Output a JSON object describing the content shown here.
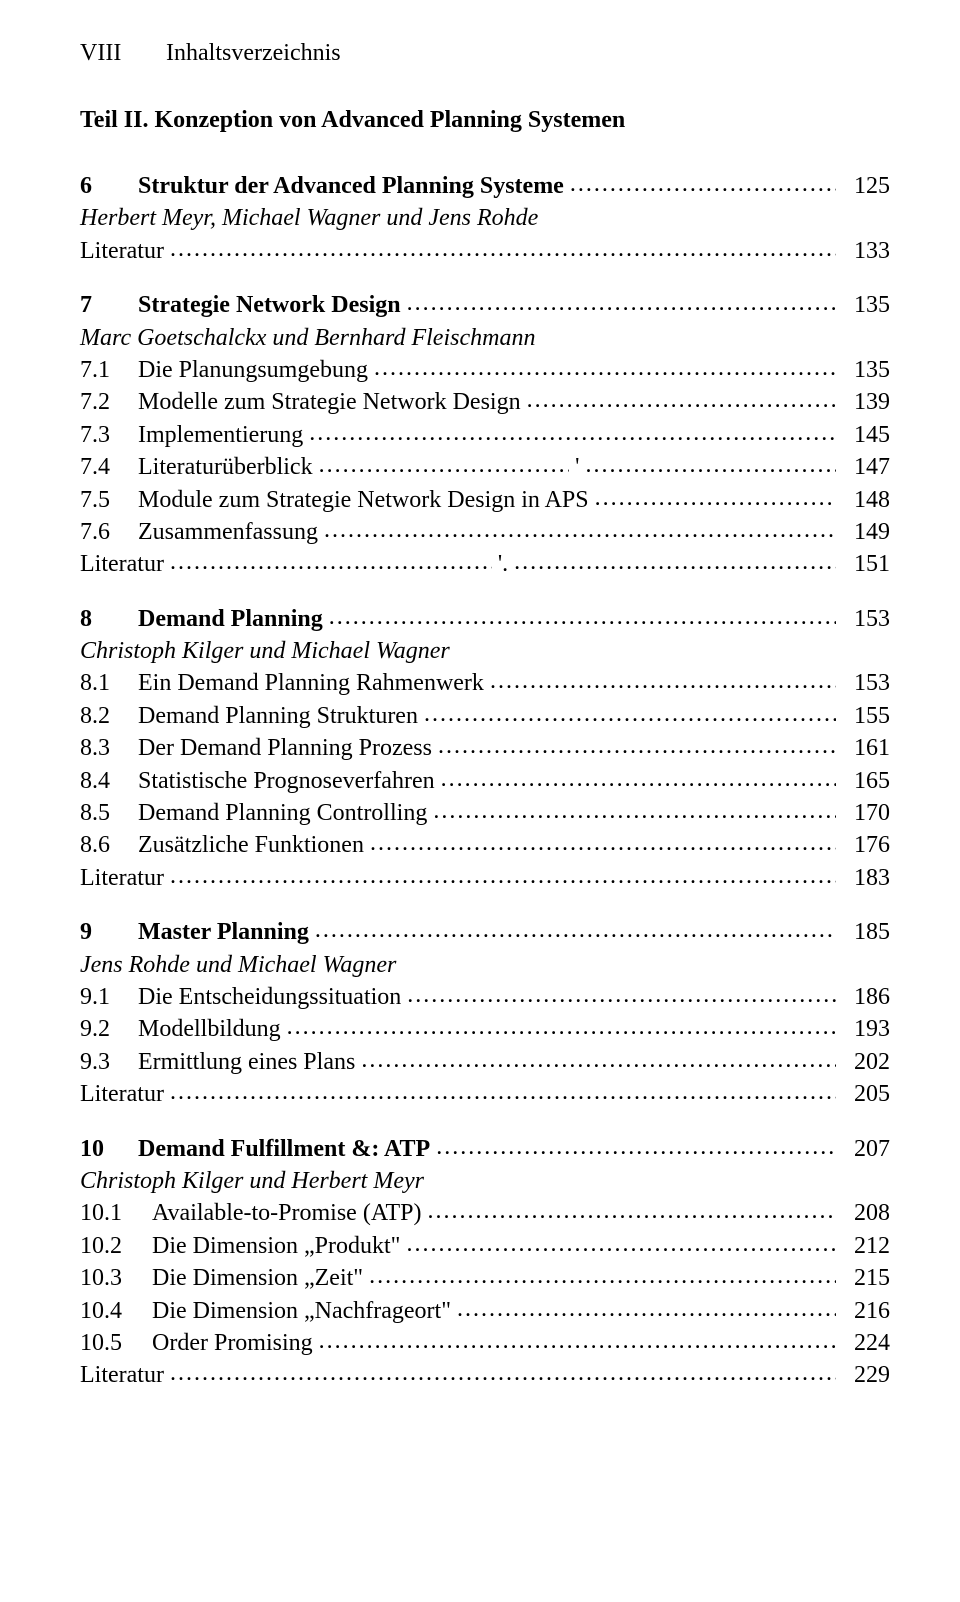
{
  "header": {
    "page_roman": "VIII",
    "title": "Inhaltsverzeichnis"
  },
  "part": {
    "title": "Teil II. Konzeption von Advanced Planning Systemen"
  },
  "ch6": {
    "num": "6",
    "title": "Struktur der Advanced Planning Systeme",
    "page": "125",
    "authors": "Herbert Meyr, Michael Wagner und Jens Rohde",
    "lit": {
      "label": "Literatur",
      "page": "133"
    }
  },
  "ch7": {
    "num": "7",
    "title": "Strategie Network Design",
    "page": "135",
    "authors": "Marc Goetschalckx und Bernhard Fleischmann",
    "s1": {
      "num": "7.1",
      "label": "Die Planungsumgebung",
      "page": "135"
    },
    "s2": {
      "num": "7.2",
      "label": "Modelle zum Strategie Network Design",
      "page": "139"
    },
    "s3": {
      "num": "7.3",
      "label": "Implementierung",
      "page": "145"
    },
    "s4": {
      "num": "7.4",
      "label": "Literaturüberblick",
      "mark": "'",
      "page": "147"
    },
    "s5": {
      "num": "7.5",
      "label": "Module zum Strategie Network Design in APS",
      "page": "148"
    },
    "s6": {
      "num": "7.6",
      "label": "Zusammenfassung",
      "page": "149"
    },
    "lit": {
      "label": "Literatur",
      "mark": "'.",
      "page": "151"
    }
  },
  "ch8": {
    "num": "8",
    "title": "Demand Planning",
    "page": "153",
    "authors": "Christoph Kilger und Michael Wagner",
    "s1": {
      "num": "8.1",
      "label": "Ein Demand Planning Rahmenwerk",
      "page": "153"
    },
    "s2": {
      "num": "8.2",
      "label": "Demand Planning Strukturen",
      "page": "155"
    },
    "s3": {
      "num": "8.3",
      "label": "Der Demand Planning Prozess",
      "page": "161"
    },
    "s4": {
      "num": "8.4",
      "label": "Statistische Prognoseverfahren",
      "page": "165"
    },
    "s5": {
      "num": "8.5",
      "label": "Demand Planning Controlling",
      "page": "170"
    },
    "s6": {
      "num": "8.6",
      "label": "Zusätzliche Funktionen",
      "page": "176"
    },
    "lit": {
      "label": "Literatur",
      "page": "183"
    }
  },
  "ch9": {
    "num": "9",
    "title": "Master Planning",
    "page": "185",
    "authors": "Jens Rohde und Michael Wagner",
    "s1": {
      "num": "9.1",
      "label": "Die Entscheidungssituation",
      "page": "186"
    },
    "s2": {
      "num": "9.2",
      "label": "Modellbildung",
      "page": "193"
    },
    "s3": {
      "num": "9.3",
      "label": "Ermittlung eines Plans",
      "page": "202"
    },
    "lit": {
      "label": "Literatur",
      "page": "205"
    }
  },
  "ch10": {
    "num": "10",
    "title": "Demand Fulfillment &: ATP",
    "page": "207",
    "authors": "Christoph Kilger und Herbert Meyr",
    "s1": {
      "num": "10.1",
      "label": "Available-to-Promise (ATP)",
      "page": "208"
    },
    "s2": {
      "num": "10.2",
      "label": "Die Dimension „Produkt\"",
      "page": "212"
    },
    "s3": {
      "num": "10.3",
      "label": "Die Dimension „Zeit\"",
      "page": "215"
    },
    "s4": {
      "num": "10.4",
      "label": "Die Dimension „Nachfrageort\"",
      "page": "216"
    },
    "s5": {
      "num": "10.5",
      "label": "Order Promising",
      "page": "224"
    },
    "lit": {
      "label": "Literatur",
      "page": "229"
    }
  }
}
